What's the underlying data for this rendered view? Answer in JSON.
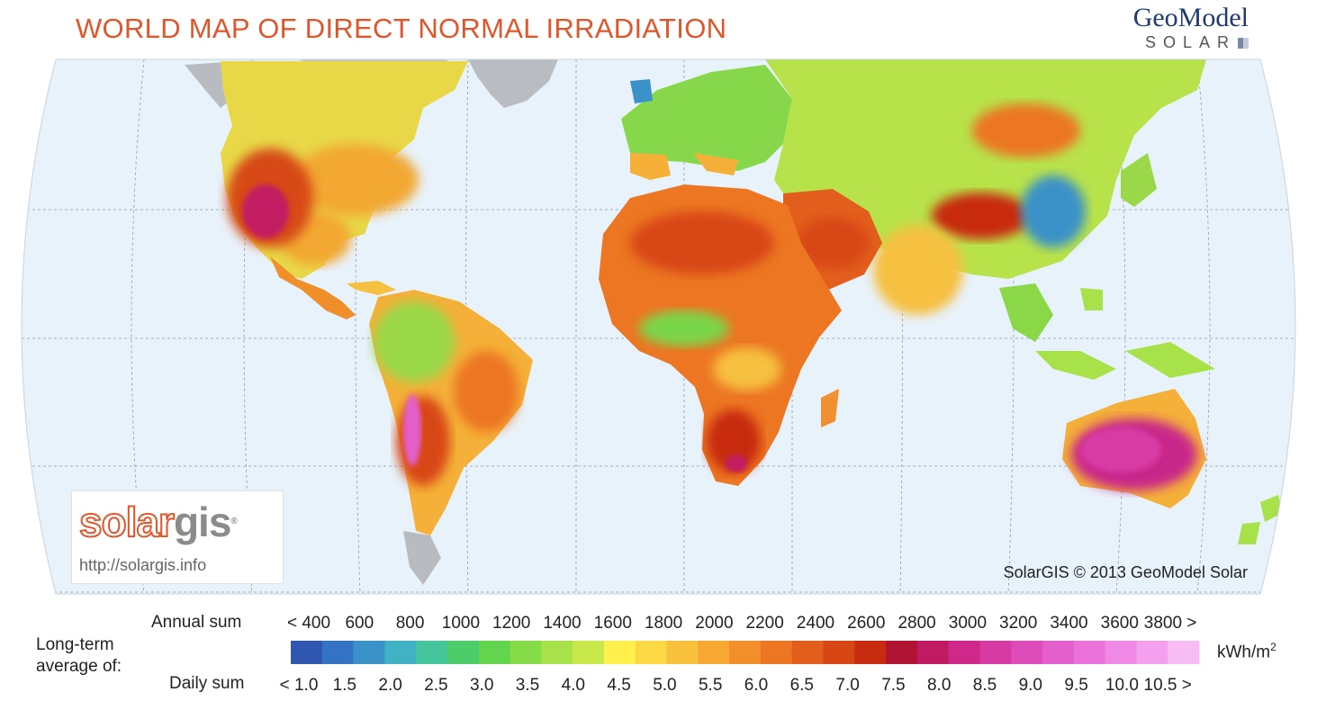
{
  "title": "WORLD MAP OF DIRECT NORMAL IRRADIATION",
  "brand": {
    "name": "GeoModel",
    "sub": "SOLAR"
  },
  "logo": {
    "word_a": "solar",
    "word_b": "gis",
    "reg": "®",
    "url": "http://solargis.info"
  },
  "copyright": "SolarGIS © 2013 GeoModel Solar",
  "legend": {
    "left_label": [
      "Long-term",
      "average of:"
    ],
    "annual_label": "Annual sum",
    "daily_label": "Daily sum",
    "unit_base": "kWh/m",
    "unit_exp": "2",
    "annual_ticks": [
      "< 400",
      "600",
      "800",
      "1000",
      "1200",
      "1400",
      "1600",
      "1800",
      "2000",
      "2200",
      "2400",
      "2600",
      "2800",
      "3000",
      "3200",
      "3400",
      "3600",
      "3800 >"
    ],
    "daily_ticks": [
      "< 1.0",
      "1.5",
      "2.0",
      "2.5",
      "3.0",
      "3.5",
      "4.0",
      "4.5",
      "5.0",
      "5.5",
      "6.0",
      "6.5",
      "7.0",
      "7.5",
      "8.0",
      "8.5",
      "9.0",
      "9.5",
      "10.0",
      "10.5 >"
    ],
    "colors": [
      "#2f56b0",
      "#3472c4",
      "#3a92c8",
      "#40b2c4",
      "#44c59c",
      "#4ccd6a",
      "#62d44e",
      "#86dc48",
      "#a8e24a",
      "#c8e84c",
      "#fff04e",
      "#fcd845",
      "#f9c03c",
      "#f6a832",
      "#f28f2a",
      "#ec7622",
      "#e25e1c",
      "#d84616",
      "#c82c10",
      "#b01432",
      "#c21a62",
      "#d0288a",
      "#d83aa4",
      "#de4cba",
      "#e45ecc",
      "#ea72da",
      "#f088e6",
      "#f4a0ee",
      "#f8bcf4"
    ]
  }
}
